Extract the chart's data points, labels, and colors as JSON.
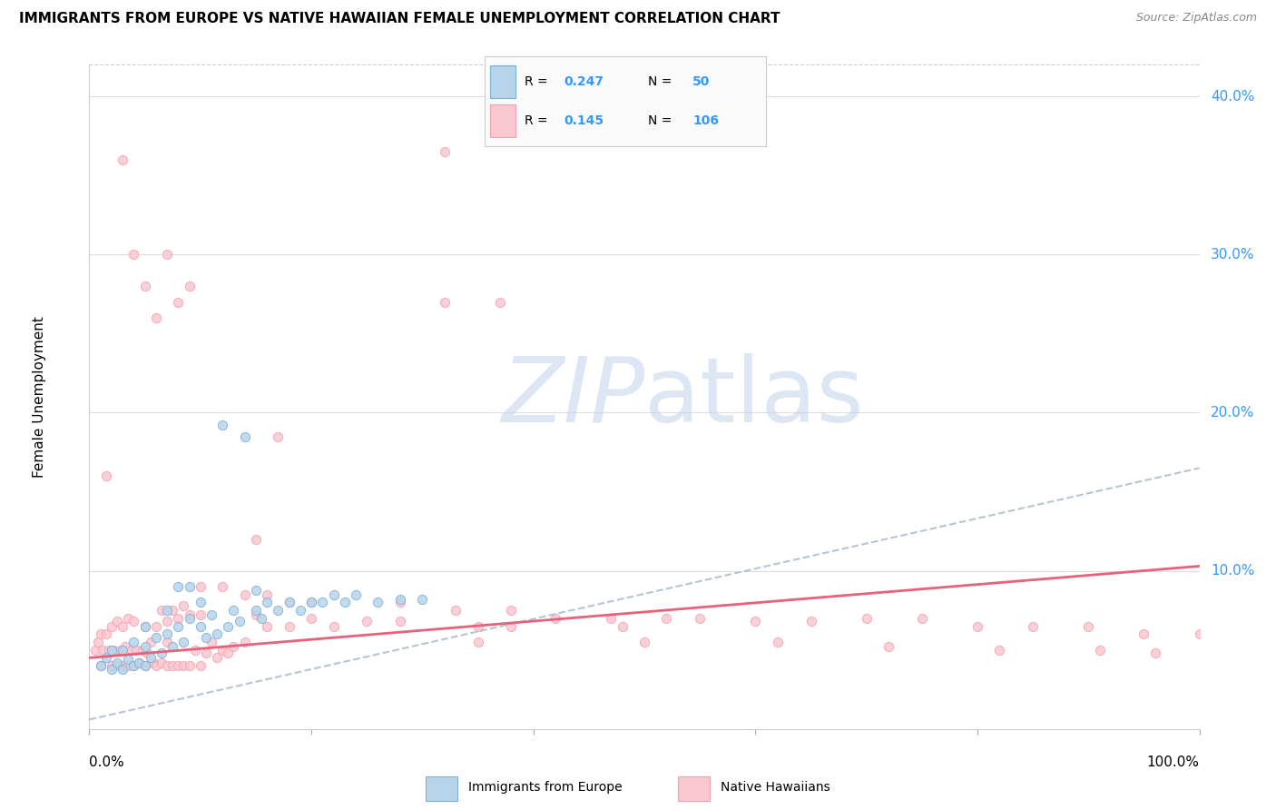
{
  "title": "IMMIGRANTS FROM EUROPE VS NATIVE HAWAIIAN FEMALE UNEMPLOYMENT CORRELATION CHART",
  "source": "Source: ZipAtlas.com",
  "ylabel": "Female Unemployment",
  "blue_color": "#7BAFD4",
  "pink_color": "#F4A0B0",
  "blue_fill": "#B8D4EA",
  "pink_fill": "#F9C8D0",
  "trend_blue_color": "#7BAFD4",
  "trend_pink_color": "#E8607A",
  "watermark_color": "#C8DCF0",
  "ylim_max": 0.42,
  "blue_trend": [
    0.0,
    0.006,
    1.0,
    0.165
  ],
  "pink_trend": [
    0.0,
    0.045,
    1.0,
    0.103
  ],
  "blue_x": [
    0.01,
    0.015,
    0.02,
    0.02,
    0.025,
    0.03,
    0.03,
    0.035,
    0.04,
    0.04,
    0.045,
    0.05,
    0.05,
    0.05,
    0.055,
    0.06,
    0.065,
    0.07,
    0.07,
    0.075,
    0.08,
    0.085,
    0.09,
    0.1,
    0.1,
    0.105,
    0.11,
    0.115,
    0.12,
    0.125,
    0.13,
    0.135,
    0.14,
    0.15,
    0.155,
    0.16,
    0.17,
    0.18,
    0.19,
    0.2,
    0.21,
    0.22,
    0.23,
    0.24,
    0.26,
    0.28,
    0.3,
    0.08,
    0.09,
    0.15
  ],
  "blue_y": [
    0.04,
    0.045,
    0.038,
    0.05,
    0.042,
    0.038,
    0.05,
    0.044,
    0.04,
    0.055,
    0.042,
    0.04,
    0.052,
    0.065,
    0.045,
    0.058,
    0.048,
    0.06,
    0.075,
    0.052,
    0.065,
    0.055,
    0.07,
    0.065,
    0.08,
    0.058,
    0.072,
    0.06,
    0.192,
    0.065,
    0.075,
    0.068,
    0.185,
    0.075,
    0.07,
    0.08,
    0.075,
    0.08,
    0.075,
    0.08,
    0.08,
    0.085,
    0.08,
    0.085,
    0.08,
    0.082,
    0.082,
    0.09,
    0.09,
    0.088
  ],
  "pink_x": [
    0.005,
    0.008,
    0.01,
    0.01,
    0.012,
    0.015,
    0.015,
    0.018,
    0.02,
    0.02,
    0.022,
    0.025,
    0.025,
    0.028,
    0.03,
    0.03,
    0.032,
    0.035,
    0.035,
    0.038,
    0.04,
    0.04,
    0.042,
    0.045,
    0.048,
    0.05,
    0.05,
    0.052,
    0.055,
    0.058,
    0.06,
    0.06,
    0.065,
    0.065,
    0.07,
    0.07,
    0.075,
    0.075,
    0.08,
    0.08,
    0.085,
    0.085,
    0.09,
    0.09,
    0.095,
    0.1,
    0.1,
    0.105,
    0.11,
    0.115,
    0.12,
    0.125,
    0.13,
    0.14,
    0.15,
    0.16,
    0.17,
    0.18,
    0.2,
    0.22,
    0.25,
    0.28,
    0.32,
    0.35,
    0.38,
    0.42,
    0.48,
    0.55,
    0.6,
    0.65,
    0.7,
    0.75,
    0.8,
    0.85,
    0.9,
    0.95,
    1.0,
    0.32,
    0.37,
    0.03,
    0.04,
    0.05,
    0.06,
    0.07,
    0.08,
    0.09,
    0.1,
    0.12,
    0.14,
    0.16,
    0.18,
    0.2,
    0.15,
    0.28,
    0.33,
    0.38,
    0.47,
    0.52,
    0.07,
    0.35,
    0.5,
    0.62,
    0.72,
    0.82,
    0.91,
    0.96
  ],
  "pink_y": [
    0.05,
    0.055,
    0.04,
    0.06,
    0.05,
    0.16,
    0.06,
    0.05,
    0.04,
    0.065,
    0.05,
    0.04,
    0.068,
    0.05,
    0.04,
    0.065,
    0.052,
    0.04,
    0.07,
    0.05,
    0.04,
    0.068,
    0.05,
    0.042,
    0.05,
    0.04,
    0.065,
    0.048,
    0.055,
    0.042,
    0.04,
    0.065,
    0.042,
    0.075,
    0.04,
    0.068,
    0.04,
    0.075,
    0.04,
    0.07,
    0.04,
    0.078,
    0.04,
    0.072,
    0.05,
    0.04,
    0.072,
    0.048,
    0.055,
    0.045,
    0.05,
    0.048,
    0.052,
    0.055,
    0.12,
    0.065,
    0.185,
    0.065,
    0.07,
    0.065,
    0.068,
    0.068,
    0.27,
    0.065,
    0.065,
    0.07,
    0.065,
    0.07,
    0.068,
    0.068,
    0.07,
    0.07,
    0.065,
    0.065,
    0.065,
    0.06,
    0.06,
    0.365,
    0.27,
    0.36,
    0.3,
    0.28,
    0.26,
    0.3,
    0.27,
    0.28,
    0.09,
    0.09,
    0.085,
    0.085,
    0.08,
    0.08,
    0.072,
    0.08,
    0.075,
    0.075,
    0.07,
    0.07,
    0.055,
    0.055,
    0.055,
    0.055,
    0.052,
    0.05,
    0.05,
    0.048
  ]
}
